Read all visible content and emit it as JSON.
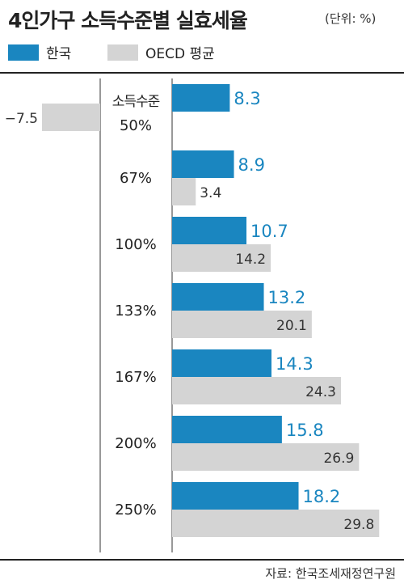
{
  "header": {
    "title": "4인가구 소득수준별 실효세율",
    "unit": "(단위: %)"
  },
  "legend": {
    "items": [
      {
        "label": "한국",
        "color": "#1a86c0"
      },
      {
        "label": "OECD 평균",
        "color": "#d4d4d4"
      }
    ]
  },
  "footer": {
    "source": "자료: 한국조세재정연구원"
  },
  "colors": {
    "korea": "#1a86c0",
    "oecd": "#d4d4d4",
    "korea_label": "#1a86c0",
    "oecd_label": "#333333",
    "axis": "#555555"
  },
  "chart_data": {
    "type": "bar",
    "orientation": "horizontal",
    "title": "4인가구 소득수준별 실효세율",
    "unit": "(단위: %)",
    "category_header": "소득수준",
    "categories": [
      "50%",
      "67%",
      "100%",
      "133%",
      "167%",
      "200%",
      "250%"
    ],
    "series": [
      {
        "name": "한국",
        "values": [
          8.3,
          8.9,
          10.7,
          13.2,
          14.3,
          15.8,
          18.2
        ],
        "labels": [
          "8.3",
          "8.9",
          "10.7",
          "13.2",
          "14.3",
          "15.8",
          "18.2"
        ]
      },
      {
        "name": "OECD 평균",
        "values": [
          -7.5,
          3.4,
          14.2,
          20.1,
          24.3,
          26.9,
          29.8
        ],
        "labels": [
          "−7.5",
          "3.4",
          "14.2",
          "20.1",
          "24.3",
          "26.9",
          "29.8"
        ]
      }
    ],
    "xlim": [
      -10,
      30
    ],
    "legend_position": "top-left",
    "grid": false
  }
}
